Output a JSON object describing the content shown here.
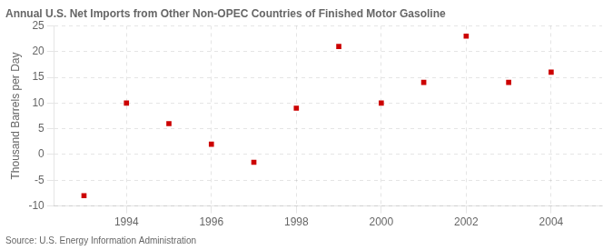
{
  "chart_data": {
    "type": "scatter",
    "title": "Annual U.S. Net Imports from Other Non-OPEC Countries of Finished Motor Gasoline",
    "ylabel": "Thousand Barrels per Day",
    "annotation": "Source: U.S. Energy Information Administration",
    "x": [
      1993,
      1994,
      1995,
      1996,
      1997,
      1998,
      1999,
      2000,
      2001,
      2002,
      2003,
      2004
    ],
    "values": [
      -8,
      10,
      6,
      2,
      -1.5,
      9,
      21,
      10,
      14,
      23,
      14,
      16
    ],
    "color": "#cc0000",
    "marker": "square",
    "xlim": [
      1992.3,
      2005.2
    ],
    "xticks": [
      1994,
      1996,
      1998,
      2000,
      2002,
      2004
    ],
    "ylim": [
      -10,
      25
    ],
    "yticks": [
      -10,
      -5,
      0,
      5,
      10,
      15,
      20,
      25
    ],
    "grid": true
  }
}
